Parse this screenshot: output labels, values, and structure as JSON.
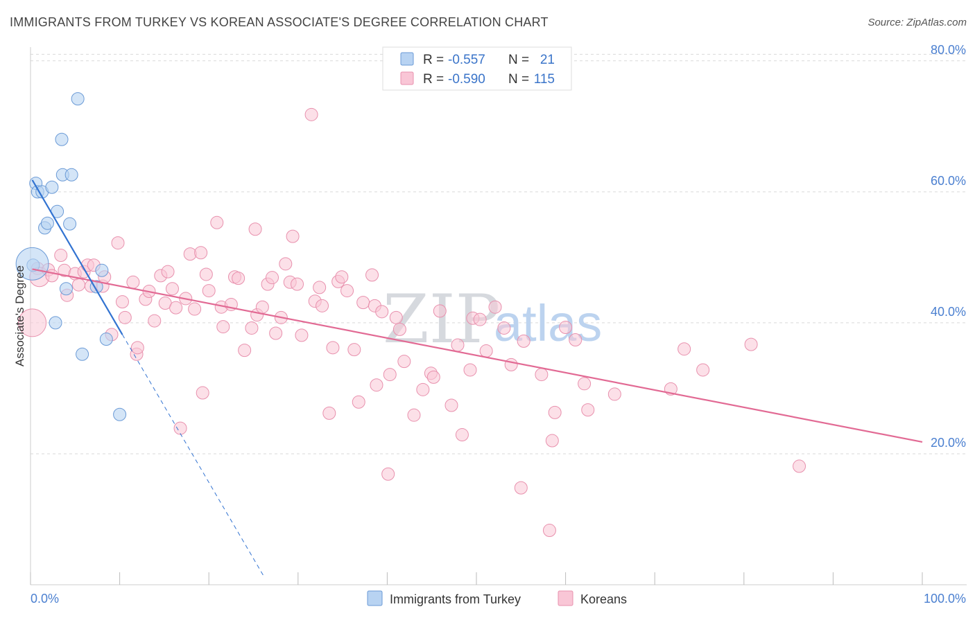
{
  "header": {
    "title": "IMMIGRANTS FROM TURKEY VS KOREAN ASSOCIATE'S DEGREE CORRELATION CHART",
    "source": "Source: ZipAtlas.com"
  },
  "watermark": {
    "zip": "ZIP",
    "atlas": "atlas"
  },
  "legend": {
    "r_label": "R =",
    "n_label": "N =",
    "rows": [
      {
        "r": "-0.557",
        "n": "21"
      },
      {
        "r": "-0.590",
        "n": "115"
      }
    ]
  },
  "colors": {
    "turkey_fill": "#b8d3f2",
    "turkey_stroke": "#6a9ad6",
    "turkey_line": "#3273d1",
    "korean_fill": "#f9c6d6",
    "korean_stroke": "#e890ad",
    "korean_line": "#e26a94",
    "tick": "#4a7fd0",
    "grid": "#d9d9d9"
  },
  "chart_data": {
    "type": "scatter",
    "title": "IMMIGRANTS FROM TURKEY VS KOREAN ASSOCIATE'S DEGREE CORRELATION CHART",
    "xlabel": "",
    "ylabel": "Associate's Degree",
    "xlim": [
      0,
      100
    ],
    "ylim": [
      0,
      84
    ],
    "x_tick_labels": [
      "0.0%",
      "100.0%"
    ],
    "y_ticks": [
      20,
      40,
      60,
      80
    ],
    "y_tick_labels": [
      "20.0%",
      "40.0%",
      "60.0%",
      "80.0%"
    ],
    "grid": true,
    "legend_position": "top-center",
    "series": [
      {
        "name": "Immigrants from Turkey",
        "r": -0.557,
        "n": 21,
        "points": [
          [
            0.3,
            48.8
          ],
          [
            0.6,
            61.3
          ],
          [
            0.8,
            60.0
          ],
          [
            1.3,
            60.0
          ],
          [
            1.6,
            54.5
          ],
          [
            1.9,
            55.2
          ],
          [
            2.4,
            60.7
          ],
          [
            2.8,
            40.0
          ],
          [
            3.0,
            57.0
          ],
          [
            3.5,
            68.0
          ],
          [
            3.6,
            62.6
          ],
          [
            4.0,
            45.2
          ],
          [
            4.4,
            55.1
          ],
          [
            4.6,
            62.6
          ],
          [
            5.3,
            74.2
          ],
          [
            5.8,
            35.2
          ],
          [
            7.4,
            45.5
          ],
          [
            8.0,
            48.0
          ],
          [
            8.5,
            37.5
          ],
          [
            10.0,
            26.0
          ],
          [
            0.2,
            49.0
          ]
        ],
        "sizes": [
          1,
          1,
          1,
          1,
          1,
          1,
          1,
          1,
          1,
          1,
          1,
          1,
          1,
          1,
          1,
          1,
          1,
          1,
          1,
          1,
          2.6
        ],
        "trend": {
          "x0": 0.2,
          "y0": 61.8,
          "x1": 10.3,
          "y1": 38.2,
          "dash_to_x": 26.2,
          "dash_to_y": 1.2
        }
      },
      {
        "name": "Koreans",
        "r": -0.59,
        "n": 115,
        "points": [
          [
            0.2,
            40.0
          ],
          [
            0.8,
            48.3
          ],
          [
            1.0,
            47.0
          ],
          [
            2.0,
            48.1
          ],
          [
            2.4,
            47.2
          ],
          [
            3.4,
            50.3
          ],
          [
            3.8,
            48.0
          ],
          [
            4.1,
            44.2
          ],
          [
            5.0,
            47.5
          ],
          [
            5.4,
            45.8
          ],
          [
            6.0,
            47.8
          ],
          [
            6.4,
            48.8
          ],
          [
            6.8,
            45.6
          ],
          [
            7.1,
            48.8
          ],
          [
            8.1,
            45.6
          ],
          [
            8.3,
            47.0
          ],
          [
            9.1,
            38.2
          ],
          [
            9.8,
            52.2
          ],
          [
            10.3,
            43.2
          ],
          [
            10.6,
            40.8
          ],
          [
            11.5,
            46.2
          ],
          [
            11.9,
            35.2
          ],
          [
            12.0,
            36.2
          ],
          [
            12.9,
            43.6
          ],
          [
            13.3,
            44.8
          ],
          [
            13.9,
            40.3
          ],
          [
            14.6,
            47.2
          ],
          [
            15.1,
            43.0
          ],
          [
            15.4,
            47.8
          ],
          [
            15.9,
            45.2
          ],
          [
            16.3,
            42.3
          ],
          [
            16.8,
            23.9
          ],
          [
            17.4,
            43.7
          ],
          [
            17.9,
            50.5
          ],
          [
            18.4,
            42.1
          ],
          [
            19.1,
            50.7
          ],
          [
            19.3,
            29.3
          ],
          [
            19.7,
            47.4
          ],
          [
            20.0,
            44.9
          ],
          [
            20.9,
            55.3
          ],
          [
            21.4,
            42.4
          ],
          [
            21.6,
            39.4
          ],
          [
            22.5,
            42.8
          ],
          [
            22.9,
            47.0
          ],
          [
            23.3,
            46.8
          ],
          [
            24.0,
            35.8
          ],
          [
            24.8,
            39.2
          ],
          [
            25.2,
            54.3
          ],
          [
            25.4,
            41.2
          ],
          [
            26.0,
            42.4
          ],
          [
            26.6,
            45.9
          ],
          [
            27.1,
            46.9
          ],
          [
            27.5,
            38.4
          ],
          [
            28.1,
            40.8
          ],
          [
            28.6,
            49.0
          ],
          [
            29.1,
            46.2
          ],
          [
            29.4,
            53.2
          ],
          [
            29.9,
            45.9
          ],
          [
            30.4,
            38.1
          ],
          [
            31.5,
            71.8
          ],
          [
            31.9,
            43.3
          ],
          [
            32.4,
            45.4
          ],
          [
            32.7,
            42.6
          ],
          [
            33.5,
            26.2
          ],
          [
            33.9,
            36.2
          ],
          [
            34.5,
            46.3
          ],
          [
            34.9,
            47.0
          ],
          [
            35.5,
            44.9
          ],
          [
            36.3,
            35.9
          ],
          [
            36.8,
            27.9
          ],
          [
            37.3,
            43.1
          ],
          [
            38.3,
            47.3
          ],
          [
            38.6,
            42.6
          ],
          [
            38.8,
            30.5
          ],
          [
            39.4,
            41.7
          ],
          [
            40.1,
            16.9
          ],
          [
            40.3,
            32.1
          ],
          [
            41.0,
            40.8
          ],
          [
            41.4,
            39.0
          ],
          [
            41.9,
            34.1
          ],
          [
            43.0,
            25.9
          ],
          [
            44.0,
            29.8
          ],
          [
            44.9,
            32.3
          ],
          [
            45.2,
            31.7
          ],
          [
            45.9,
            41.8
          ],
          [
            47.2,
            27.4
          ],
          [
            47.9,
            36.6
          ],
          [
            48.4,
            22.9
          ],
          [
            49.3,
            32.8
          ],
          [
            49.6,
            40.7
          ],
          [
            50.4,
            40.5
          ],
          [
            51.1,
            35.7
          ],
          [
            52.1,
            42.4
          ],
          [
            53.1,
            39.2
          ],
          [
            53.9,
            33.6
          ],
          [
            55.0,
            14.8
          ],
          [
            55.3,
            37.2
          ],
          [
            57.3,
            32.1
          ],
          [
            58.2,
            8.3
          ],
          [
            58.5,
            22.0
          ],
          [
            58.8,
            26.3
          ],
          [
            60.0,
            39.3
          ],
          [
            61.1,
            37.4
          ],
          [
            62.1,
            30.7
          ],
          [
            62.5,
            26.7
          ],
          [
            65.5,
            29.1
          ],
          [
            71.8,
            29.9
          ],
          [
            73.3,
            36.0
          ],
          [
            75.4,
            32.8
          ],
          [
            80.8,
            36.7
          ],
          [
            86.2,
            18.1
          ]
        ],
        "sizes_note": "first point rendered large",
        "trend": {
          "x0": 0.2,
          "y0": 48.2,
          "x1": 100,
          "y1": 21.8
        }
      }
    ]
  },
  "bottom_legend": {
    "items": [
      {
        "label": "Immigrants from Turkey"
      },
      {
        "label": "Koreans"
      }
    ]
  }
}
